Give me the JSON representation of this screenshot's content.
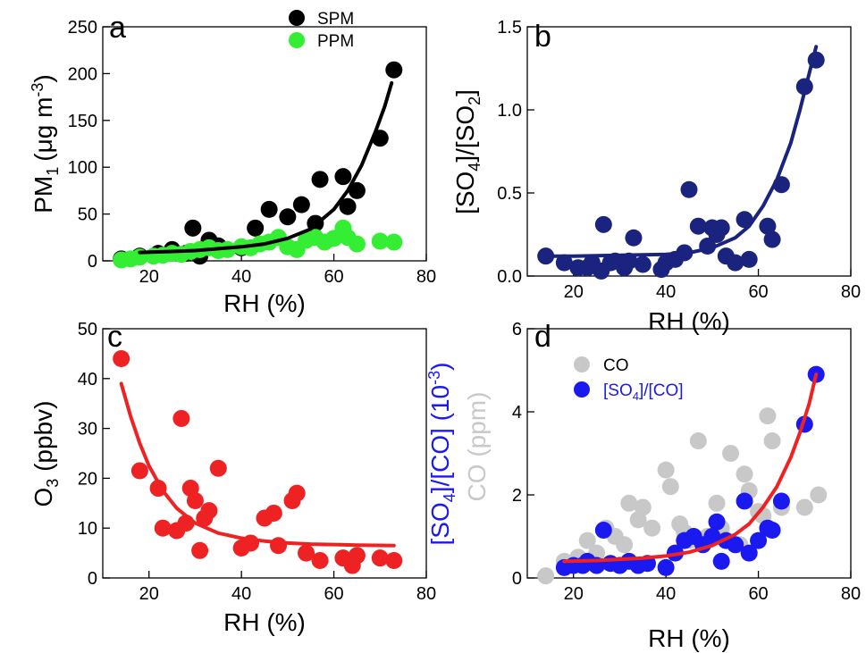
{
  "chart_data": [
    {
      "panel_letter": "a",
      "type": "scatter",
      "xlabel": "RH (%)",
      "ylabel": "PM",
      "ylabel_sub": "1",
      "ylabel_unit": "(μg m",
      "ylabel_unit_sup": "-3",
      "ylabel_unit_end": ")",
      "xlim": [
        10,
        80
      ],
      "ylim": [
        0,
        250
      ],
      "xticks": [
        20,
        40,
        60,
        80
      ],
      "yticks": [
        0,
        50,
        100,
        150,
        200,
        250
      ],
      "legend_position": "top-center",
      "series": [
        {
          "name": "SPM",
          "color": "#000000",
          "x": [
            14,
            18,
            22,
            25,
            28,
            29.5,
            31,
            33,
            35,
            40,
            43,
            46,
            50,
            53,
            56,
            57,
            62,
            63,
            65,
            70,
            73
          ],
          "y": [
            2,
            5,
            8,
            12,
            8,
            35,
            5,
            22,
            16,
            14,
            35,
            55,
            47,
            60,
            40,
            87,
            90,
            58,
            75,
            131,
            204
          ]
        },
        {
          "name": "PPM",
          "color": "#33ee33",
          "x": [
            14,
            16,
            18,
            21,
            23,
            25,
            27,
            29,
            31,
            33,
            35,
            37,
            40,
            42,
            44,
            46,
            48,
            50,
            52,
            54,
            56,
            58,
            60,
            62,
            63,
            65,
            70,
            73
          ],
          "y": [
            1,
            2,
            4,
            5,
            6,
            8,
            7,
            10,
            12,
            14,
            11,
            12,
            15,
            14,
            18,
            20,
            25,
            15,
            12,
            22,
            25,
            20,
            24,
            35,
            25,
            18,
            21,
            20
          ]
        }
      ],
      "fits": [
        {
          "color": "#000000",
          "x": [
            18,
            25,
            30,
            35,
            40,
            45,
            50,
            55,
            60,
            63,
            66,
            69,
            71,
            72.5
          ],
          "y": [
            9,
            10,
            11,
            13,
            15,
            18,
            24,
            34,
            55,
            75,
            102,
            138,
            165,
            190
          ]
        }
      ]
    },
    {
      "panel_letter": "b",
      "type": "scatter",
      "xlabel": "RH (%)",
      "ylabel": "[SO",
      "ylabel_sub": "4",
      "ylabel_mid": "]/[SO",
      "ylabel_sub2": "2",
      "ylabel_end": "]",
      "xlim": [
        10,
        80
      ],
      "ylim": [
        0,
        1.5
      ],
      "xticks": [
        20,
        40,
        60,
        80
      ],
      "yticks": [
        0.0,
        0.5,
        1.0,
        1.5
      ],
      "series": [
        {
          "color": "#1a237e",
          "x": [
            14,
            18,
            21,
            23,
            24,
            26,
            26.5,
            28,
            29,
            31,
            32,
            33,
            35,
            39,
            40,
            42,
            44,
            45,
            47,
            49,
            50,
            51,
            52,
            53,
            55,
            57,
            58,
            62,
            63,
            65,
            70,
            72.5
          ],
          "y": [
            0.12,
            0.08,
            0.05,
            0.05,
            0.08,
            0.03,
            0.31,
            0.08,
            0.09,
            0.05,
            0.09,
            0.23,
            0.07,
            0.04,
            0.08,
            0.1,
            0.14,
            0.52,
            0.3,
            0.18,
            0.29,
            0.25,
            0.29,
            0.12,
            0.08,
            0.34,
            0.1,
            0.3,
            0.22,
            0.55,
            1.14,
            1.3
          ]
        }
      ],
      "fits": [
        {
          "color": "#1a237e",
          "x": [
            14,
            20,
            30,
            40,
            45,
            50,
            55,
            58,
            61,
            64,
            67,
            69,
            71,
            72.5
          ],
          "y": [
            0.12,
            0.12,
            0.125,
            0.13,
            0.14,
            0.17,
            0.23,
            0.3,
            0.42,
            0.58,
            0.8,
            1.0,
            1.22,
            1.38
          ]
        }
      ]
    },
    {
      "panel_letter": "c",
      "type": "scatter",
      "xlabel": "RH (%)",
      "ylabel": "O",
      "ylabel_sub": "3",
      "ylabel_end": " (ppbv)",
      "xlim": [
        10,
        80
      ],
      "ylim": [
        0,
        50
      ],
      "xticks": [
        20,
        40,
        60,
        80
      ],
      "yticks": [
        0,
        10,
        20,
        30,
        40,
        50
      ],
      "series": [
        {
          "color": "#ee2222",
          "x": [
            14,
            18,
            22,
            23,
            26,
            27,
            28,
            29,
            30,
            31,
            32,
            33,
            35,
            40,
            42,
            45,
            47,
            48,
            51,
            52,
            54,
            57,
            62,
            64,
            65,
            70,
            73
          ],
          "y": [
            44,
            21.5,
            18,
            10,
            9.5,
            32,
            11,
            18,
            15.5,
            5.5,
            12,
            13.5,
            22,
            6,
            7,
            12,
            13,
            6.5,
            15.5,
            17,
            5,
            3.5,
            4,
            2.5,
            4.5,
            4,
            3.5
          ]
        }
      ],
      "fits": [
        {
          "color": "#ee2222",
          "x": [
            14,
            16,
            18,
            20,
            23,
            26,
            30,
            35,
            40,
            45,
            50,
            55,
            60,
            65,
            73
          ],
          "y": [
            39,
            32.5,
            27,
            22.5,
            17.5,
            14,
            11,
            9,
            8,
            7.4,
            7,
            6.8,
            6.7,
            6.6,
            6.5
          ]
        }
      ]
    },
    {
      "panel_letter": "d",
      "type": "scatter",
      "xlabel": "RH (%)",
      "ylabel_left_1": "[SO",
      "ylabel_left_1_sub": "4",
      "ylabel_left_1_mid": "]/[CO] (10",
      "ylabel_left_1_sup": "-3",
      "ylabel_left_1_end": ")",
      "ylabel_left_2": "CO (ppm)",
      "xlim": [
        10,
        80
      ],
      "ylim": [
        0,
        6
      ],
      "xticks": [
        20,
        40,
        60,
        80
      ],
      "yticks": [
        0,
        2,
        4,
        6
      ],
      "legend_position": "top-left",
      "series": [
        {
          "name": "CO",
          "color": "#c8c8c8",
          "x": [
            14,
            18,
            21,
            23,
            25,
            27,
            29,
            31,
            32,
            34,
            35,
            37,
            40,
            41,
            43,
            44,
            45,
            47,
            49,
            51,
            52,
            54,
            56,
            57,
            58,
            60,
            61,
            62,
            63,
            65,
            70,
            73
          ],
          "y": [
            0.05,
            0.4,
            0.5,
            0.9,
            0.6,
            1.2,
            1.0,
            0.8,
            1.8,
            1.4,
            1.7,
            1.2,
            2.6,
            2.2,
            1.3,
            1.1,
            0.9,
            3.3,
            1.0,
            1.8,
            1.2,
            3.0,
            0.8,
            2.5,
            2.1,
            1.6,
            1.5,
            3.9,
            3.3,
            1.7,
            1.7,
            2.0
          ]
        },
        {
          "name": "[SO",
          "name_sub": "4",
          "name_end": "]/[CO]",
          "color": "#1a1af0",
          "x": [
            18,
            20,
            22,
            23,
            25,
            26.5,
            28,
            30,
            32,
            34,
            36,
            40,
            42,
            44,
            46,
            48,
            50,
            51,
            52,
            53,
            55,
            57,
            58,
            60,
            62,
            63,
            65,
            70,
            72.5
          ],
          "y": [
            0.25,
            0.3,
            0.3,
            0.4,
            0.3,
            1.15,
            0.35,
            0.3,
            0.4,
            0.3,
            0.35,
            0.25,
            0.6,
            0.9,
            1.0,
            0.8,
            1.0,
            1.35,
            0.4,
            0.9,
            0.8,
            1.85,
            0.6,
            0.9,
            1.2,
            1.15,
            1.85,
            3.7,
            4.9
          ]
        }
      ],
      "fits": [
        {
          "color": "#ee2222",
          "x": [
            18,
            25,
            30,
            35,
            40,
            45,
            50,
            55,
            58,
            61,
            64,
            67,
            69,
            71,
            72.5
          ],
          "y": [
            0.4,
            0.42,
            0.45,
            0.48,
            0.53,
            0.62,
            0.78,
            1.05,
            1.3,
            1.7,
            2.2,
            2.9,
            3.5,
            4.2,
            4.9
          ]
        }
      ]
    }
  ]
}
